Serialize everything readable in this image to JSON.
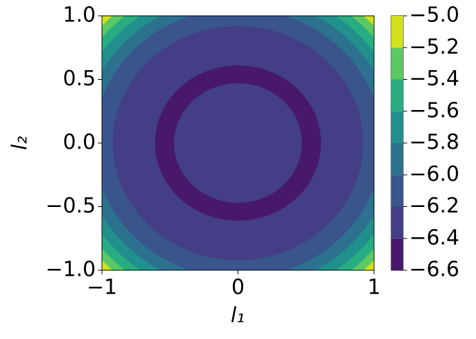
{
  "chart_data": {
    "type": "contourf",
    "xlabel": "l₁",
    "ylabel": "l₂",
    "xlim": [
      -1,
      1
    ],
    "ylim": [
      -1,
      1
    ],
    "xticks": [
      {
        "value": -1,
        "label": "−1"
      },
      0,
      1
    ],
    "yticks": [
      {
        "value": -1,
        "label": "−1.0"
      },
      {
        "value": -0.5,
        "label": "−0.5"
      },
      {
        "value": 0,
        "label": "0.0"
      },
      {
        "value": 0.5,
        "label": "0.5"
      },
      {
        "value": 1,
        "label": "1.0"
      }
    ],
    "levels": [
      -6.6,
      -6.4,
      -6.2,
      -6.0,
      -5.8,
      -5.6,
      -5.4,
      -5.2,
      -5.0
    ],
    "colors": [
      "#48186a",
      "#433e85",
      "#3a548c",
      "#2c718e",
      "#21908d",
      "#27ad81",
      "#5cc863",
      "#d2e21b"
    ],
    "colorbar_ticks": [
      {
        "value": -6.6,
        "label": "−6.6"
      },
      {
        "value": -6.4,
        "label": "−6.4"
      },
      {
        "value": -6.2,
        "label": "−6.2"
      },
      {
        "value": -6.0,
        "label": "−6.0"
      },
      {
        "value": -5.8,
        "label": "−5.8"
      },
      {
        "value": -5.6,
        "label": "−5.6"
      },
      {
        "value": -5.4,
        "label": "−5.4"
      },
      {
        "value": -5.2,
        "label": "−5.2"
      },
      {
        "value": -5.0,
        "label": "−5.0"
      }
    ],
    "rings": [
      {
        "radius": 1.45,
        "zmin": -5.2
      },
      {
        "radius": 1.36,
        "zmin": -5.4
      },
      {
        "radius": 1.3,
        "zmin": -5.6
      },
      {
        "radius": 1.23,
        "zmin": -5.8
      },
      {
        "radius": 1.15,
        "zmin": -6.0
      },
      {
        "radius": 1.06,
        "zmin": -6.2
      },
      {
        "radius": 0.92,
        "zmin": -6.4
      },
      {
        "radius": 0.61,
        "zmin": -6.6
      },
      {
        "radius": 0.47,
        "zmin": -6.4
      }
    ]
  }
}
